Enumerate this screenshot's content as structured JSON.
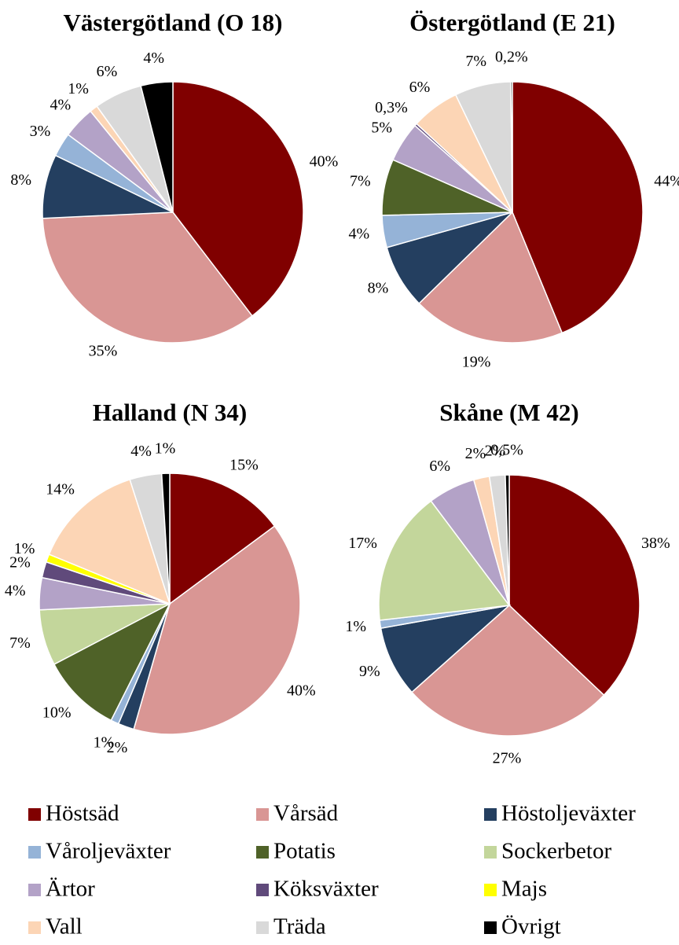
{
  "chart_data": [
    {
      "type": "pie",
      "title": "Västergötland (O 18)",
      "categories": [
        "Höstsäd",
        "Vårsäd",
        "Höstoljeväxter",
        "Våroljeväxter",
        "Ärtor",
        "Vall",
        "Träda",
        "Övrigt"
      ],
      "values": [
        40,
        35,
        8,
        3,
        4,
        1,
        6,
        4
      ],
      "value_labels": [
        "40%",
        "35%",
        "8%",
        "3%",
        "4%",
        "1%",
        "6%",
        "4%"
      ],
      "colors": [
        "#800000",
        "#d99694",
        "#243f60",
        "#95b3d7",
        "#b3a2c7",
        "#fcd5b5",
        "#d9d9d9",
        "#000000"
      ]
    },
    {
      "type": "pie",
      "title": "Östergötland (E 21)",
      "categories": [
        "Höstsäd",
        "Vårsäd",
        "Höstoljeväxter",
        "Våroljeväxter",
        "Potatis",
        "Ärtor",
        "Köksväxter",
        "Vall",
        "Träda",
        "Övrigt"
      ],
      "values": [
        44,
        19,
        8,
        4,
        7,
        5,
        0.3,
        6,
        7,
        0.2
      ],
      "value_labels": [
        "44%",
        "19%",
        "8%",
        "4%",
        "7%",
        "5%",
        "0,3%",
        "6%",
        "7%",
        "0,2%"
      ],
      "colors": [
        "#800000",
        "#d99694",
        "#243f60",
        "#95b3d7",
        "#4f6228",
        "#b3a2c7",
        "#604a7b",
        "#fcd5b5",
        "#d9d9d9",
        "#000000"
      ]
    },
    {
      "type": "pie",
      "title": "Halland (N 34)",
      "categories": [
        "Höstsäd",
        "Vårsäd",
        "Höstoljeväxter",
        "Våroljeväxter",
        "Potatis",
        "Sockerbetor",
        "Ärtor",
        "Köksväxter",
        "Majs",
        "Vall",
        "Träda",
        "Övrigt"
      ],
      "values": [
        15,
        40,
        2,
        1,
        10,
        7,
        4,
        2,
        1,
        14,
        4,
        1
      ],
      "value_labels": [
        "15%",
        "40%",
        "2%",
        "1%",
        "10%",
        "7%",
        "4%",
        "2%",
        "1%",
        "14%",
        "4%",
        "1%"
      ],
      "colors": [
        "#800000",
        "#d99694",
        "#243f60",
        "#95b3d7",
        "#4f6228",
        "#c3d69b",
        "#b3a2c7",
        "#604a7b",
        "#ffff00",
        "#fcd5b5",
        "#d9d9d9",
        "#000000"
      ]
    },
    {
      "type": "pie",
      "title": "Skåne (M 42)",
      "categories": [
        "Höstsäd",
        "Vårsäd",
        "Höstoljeväxter",
        "Våroljeväxter",
        "Sockerbetor",
        "Ärtor",
        "Vall",
        "Träda",
        "Övrigt"
      ],
      "values": [
        38,
        27,
        9,
        1,
        17,
        6,
        2,
        2,
        0.5
      ],
      "value_labels": [
        "38%",
        "27%",
        "9%",
        "1%",
        "17%",
        "6%",
        "2%",
        "2%",
        "0,5%"
      ],
      "colors": [
        "#800000",
        "#d99694",
        "#243f60",
        "#95b3d7",
        "#c3d69b",
        "#b3a2c7",
        "#fcd5b5",
        "#d9d9d9",
        "#000000"
      ]
    }
  ],
  "legend": [
    {
      "name": "Höstsäd",
      "color": "#800000"
    },
    {
      "name": "Vårsäd",
      "color": "#d99694"
    },
    {
      "name": "Höstoljeväxter",
      "color": "#243f60"
    },
    {
      "name": "Våroljeväxter",
      "color": "#95b3d7"
    },
    {
      "name": "Potatis",
      "color": "#4f6228"
    },
    {
      "name": "Sockerbetor",
      "color": "#c3d69b"
    },
    {
      "name": "Ärtor",
      "color": "#b3a2c7"
    },
    {
      "name": "Köksväxter",
      "color": "#604a7b"
    },
    {
      "name": "Majs",
      "color": "#ffff00"
    },
    {
      "name": "Vall",
      "color": "#fcd5b5"
    },
    {
      "name": "Träda",
      "color": "#d9d9d9"
    },
    {
      "name": "Övrigt",
      "color": "#000000"
    }
  ]
}
